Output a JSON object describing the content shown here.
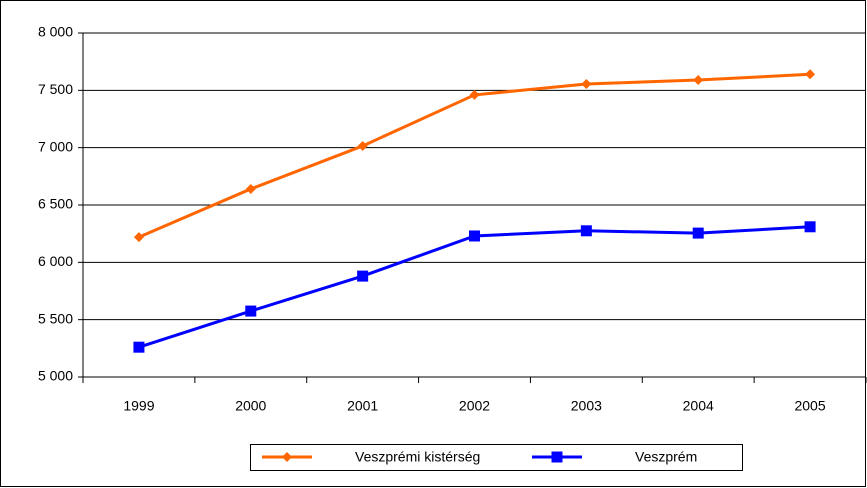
{
  "chart_data": {
    "type": "line",
    "categories": [
      "1999",
      "2000",
      "2001",
      "2002",
      "2003",
      "2004",
      "2005"
    ],
    "series": [
      {
        "name": "Veszprémi kistérség",
        "color": "#ff6600",
        "marker": "diamond",
        "values": [
          6220,
          6640,
          7015,
          7460,
          7555,
          7590,
          7640
        ]
      },
      {
        "name": "Veszprém",
        "color": "#0000ff",
        "marker": "square",
        "values": [
          5260,
          5575,
          5880,
          6230,
          6275,
          6255,
          6310
        ]
      }
    ],
    "ylim": [
      5000,
      8000
    ],
    "yticks": [
      {
        "value": 5000,
        "label": "5 000"
      },
      {
        "value": 5500,
        "label": "5 500"
      },
      {
        "value": 6000,
        "label": "6 000"
      },
      {
        "value": 6500,
        "label": "6 500"
      },
      {
        "value": 7000,
        "label": "7 000"
      },
      {
        "value": 7500,
        "label": "7 500"
      },
      {
        "value": 8000,
        "label": "8 000"
      }
    ],
    "grid": true,
    "legend": "bottom"
  }
}
